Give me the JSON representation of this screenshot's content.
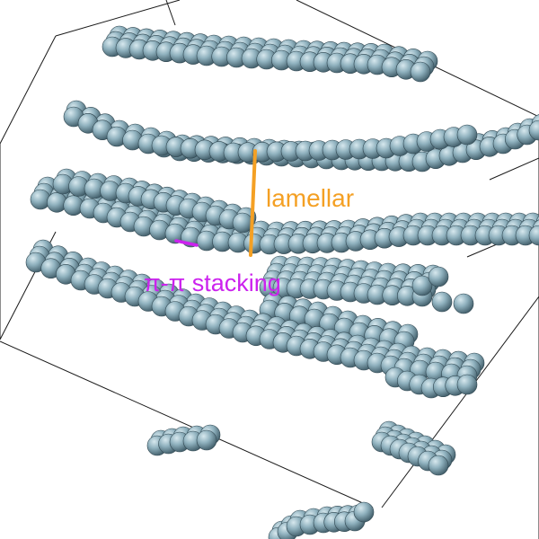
{
  "scene": {
    "colors": {
      "background": "#ffffff",
      "bead_fill": "#8fb1be",
      "bead_light": "#cfe2e8",
      "bead_dark": "#3a5560",
      "box_edges": "#1a1a1a"
    }
  },
  "annotations": {
    "lamellar": {
      "text": "lamellar",
      "color": "#f4a024"
    },
    "pi_pi": {
      "text": "π-π stacking",
      "color": "#cc22ee"
    }
  }
}
